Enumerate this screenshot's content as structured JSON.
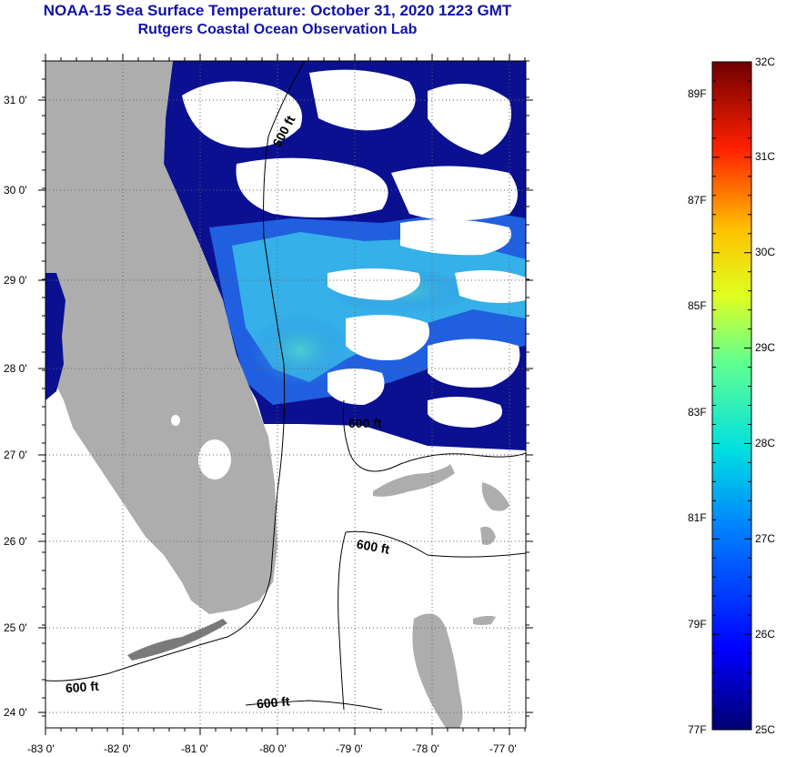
{
  "header": {
    "title": "NOAA-15 Sea Surface Temperature:  October 31, 2020 1223 GMT",
    "subtitle": "Rutgers Coastal Ocean Observation Lab"
  },
  "map": {
    "lat_labels": [
      "31 0'",
      "30 0'",
      "29 0'",
      "28 0'",
      "27 0'",
      "26 0'",
      "25 0'",
      "24 0'"
    ],
    "lon_labels": [
      "-83 0'",
      "-82 0'",
      "-81 0'",
      "-80 0'",
      "-79 0'",
      "-78 0'",
      "-77 0'"
    ],
    "contour_labels": [
      "600 ft",
      "600 ft",
      "600 ft",
      "600 ft",
      "600 ft"
    ],
    "colors": {
      "land": "#adadad",
      "cloud": "#ffffff",
      "ocean_low": "#0a1090",
      "ocean_high": "#3fd8e0"
    }
  },
  "colorbar": {
    "celsius_labels": [
      "32C",
      "31C",
      "30C",
      "29C",
      "28C",
      "27C",
      "26C",
      "25C"
    ],
    "fahrenheit_labels": [
      "89F",
      "87F",
      "85F",
      "83F",
      "81F",
      "79F",
      "77F"
    ]
  }
}
